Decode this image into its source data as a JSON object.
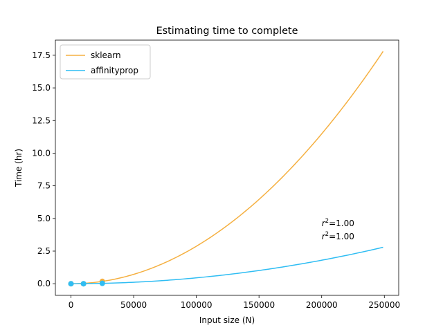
{
  "chart_data": {
    "type": "line",
    "title": "Estimating time to complete",
    "xlabel": "Input size (N)",
    "ylabel": "Time (hr)",
    "xlim": [
      -12450,
      261450
    ],
    "ylim": [
      -0.89,
      18.66
    ],
    "xticks": [
      0,
      50000,
      100000,
      150000,
      200000,
      250000
    ],
    "xtick_labels": [
      "0",
      "50000",
      "100000",
      "150000",
      "200000",
      "250000"
    ],
    "yticks": [
      0.0,
      2.5,
      5.0,
      7.5,
      10.0,
      12.5,
      15.0,
      17.5
    ],
    "ytick_labels": [
      "0.0",
      "2.5",
      "5.0",
      "7.5",
      "10.0",
      "12.5",
      "15.0",
      "17.5"
    ],
    "grid": false,
    "legend_position": "top-left",
    "series": [
      {
        "name": "sklearn",
        "color": "#f5b041",
        "fit": "quadratic",
        "x_range": [
          0,
          249000
        ],
        "coefficients": [
          0,
          0,
          2.87e-10
        ],
        "points": [
          {
            "x": 0,
            "y": 0.0
          },
          {
            "x": 10000,
            "y": 0.0
          },
          {
            "x": 25000,
            "y": 0.18
          }
        ],
        "annotation": "r²=1.00"
      },
      {
        "name": "affinityprop",
        "color": "#2fbdf3",
        "fit": "quadratic",
        "x_range": [
          0,
          249000
        ],
        "coefficients": [
          0,
          0,
          4.5e-11
        ],
        "points": [
          {
            "x": 0,
            "y": 0.0
          },
          {
            "x": 10000,
            "y": 0.0
          },
          {
            "x": 25000,
            "y": 0.03
          }
        ],
        "annotation": "r²=1.00"
      }
    ],
    "annotations": [
      {
        "text_var": "r",
        "text_sup": "2",
        "text_rest": "=1.00",
        "x": 200000,
        "y": 4.4
      },
      {
        "text_var": "r",
        "text_sup": "2",
        "text_rest": "=1.00",
        "x": 200000,
        "y": 3.4
      }
    ]
  }
}
